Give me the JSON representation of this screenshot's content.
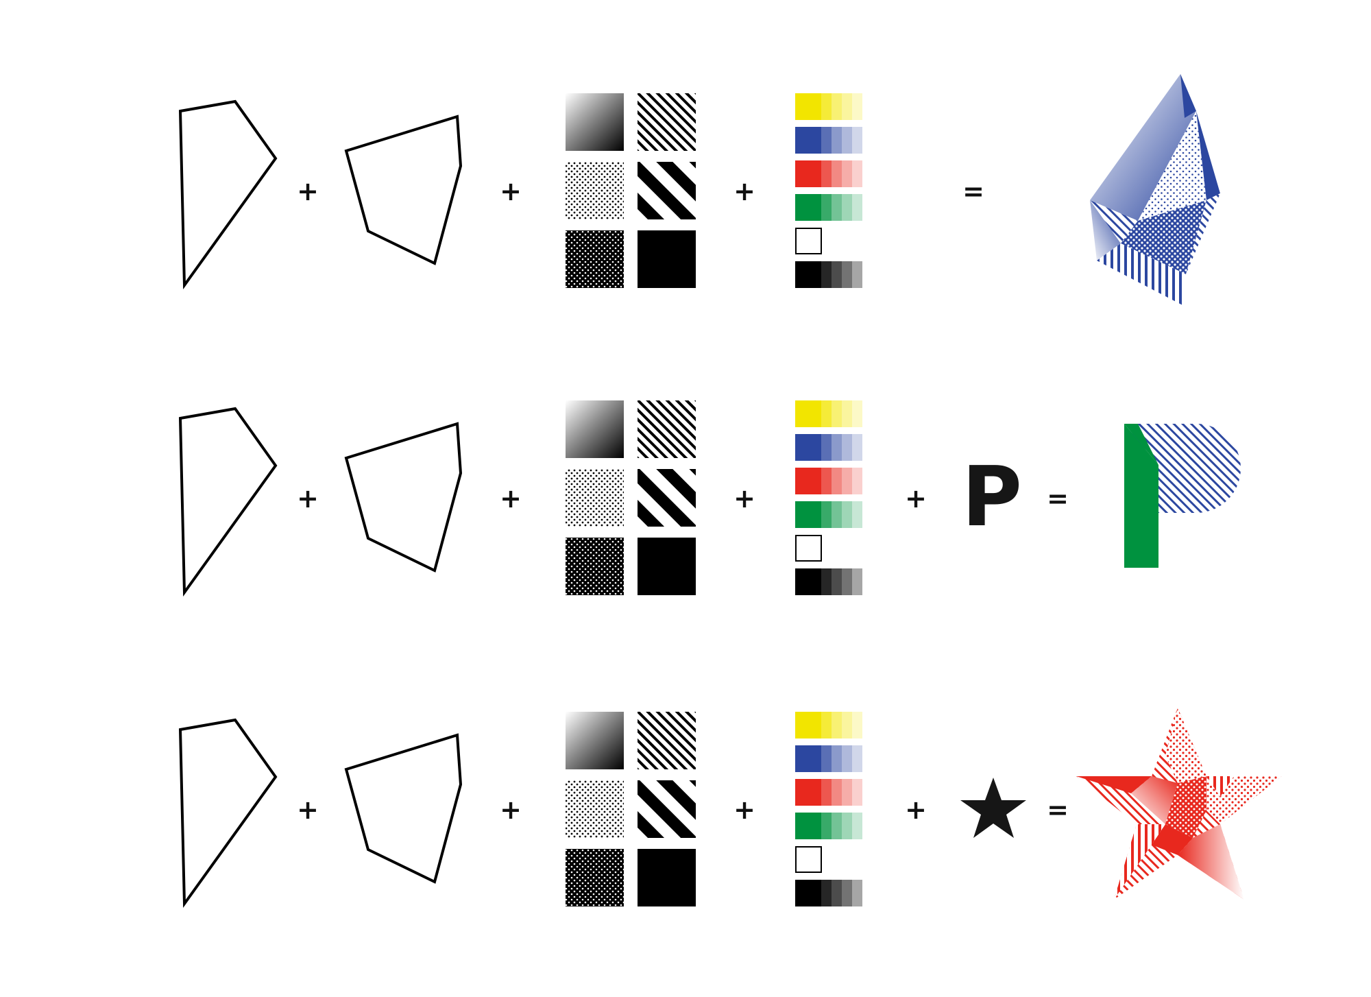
{
  "rows": [
    {
      "operators": [
        "+",
        "+",
        "+",
        "="
      ],
      "extra": null,
      "result": "crystal"
    },
    {
      "operators": [
        "+",
        "+",
        "+",
        "+",
        "="
      ],
      "extra": "P",
      "result": "P"
    },
    {
      "operators": [
        "+",
        "+",
        "+",
        "+",
        "="
      ],
      "extra": "star",
      "result": "star"
    }
  ],
  "palette": {
    "yellow": "#F2E500",
    "blue": "#2C47A0",
    "red": "#E8281E",
    "green": "#00923F",
    "black": "#000000",
    "white": "#FFFFFF"
  },
  "textures": [
    "gradient",
    "fine-diagonal-lines",
    "light-dots",
    "bold-diagonal-stripes",
    "dark-dots",
    "solid-black"
  ],
  "icons": [
    "polygon-shape-a-icon",
    "polygon-shape-b-icon",
    "star-icon"
  ]
}
